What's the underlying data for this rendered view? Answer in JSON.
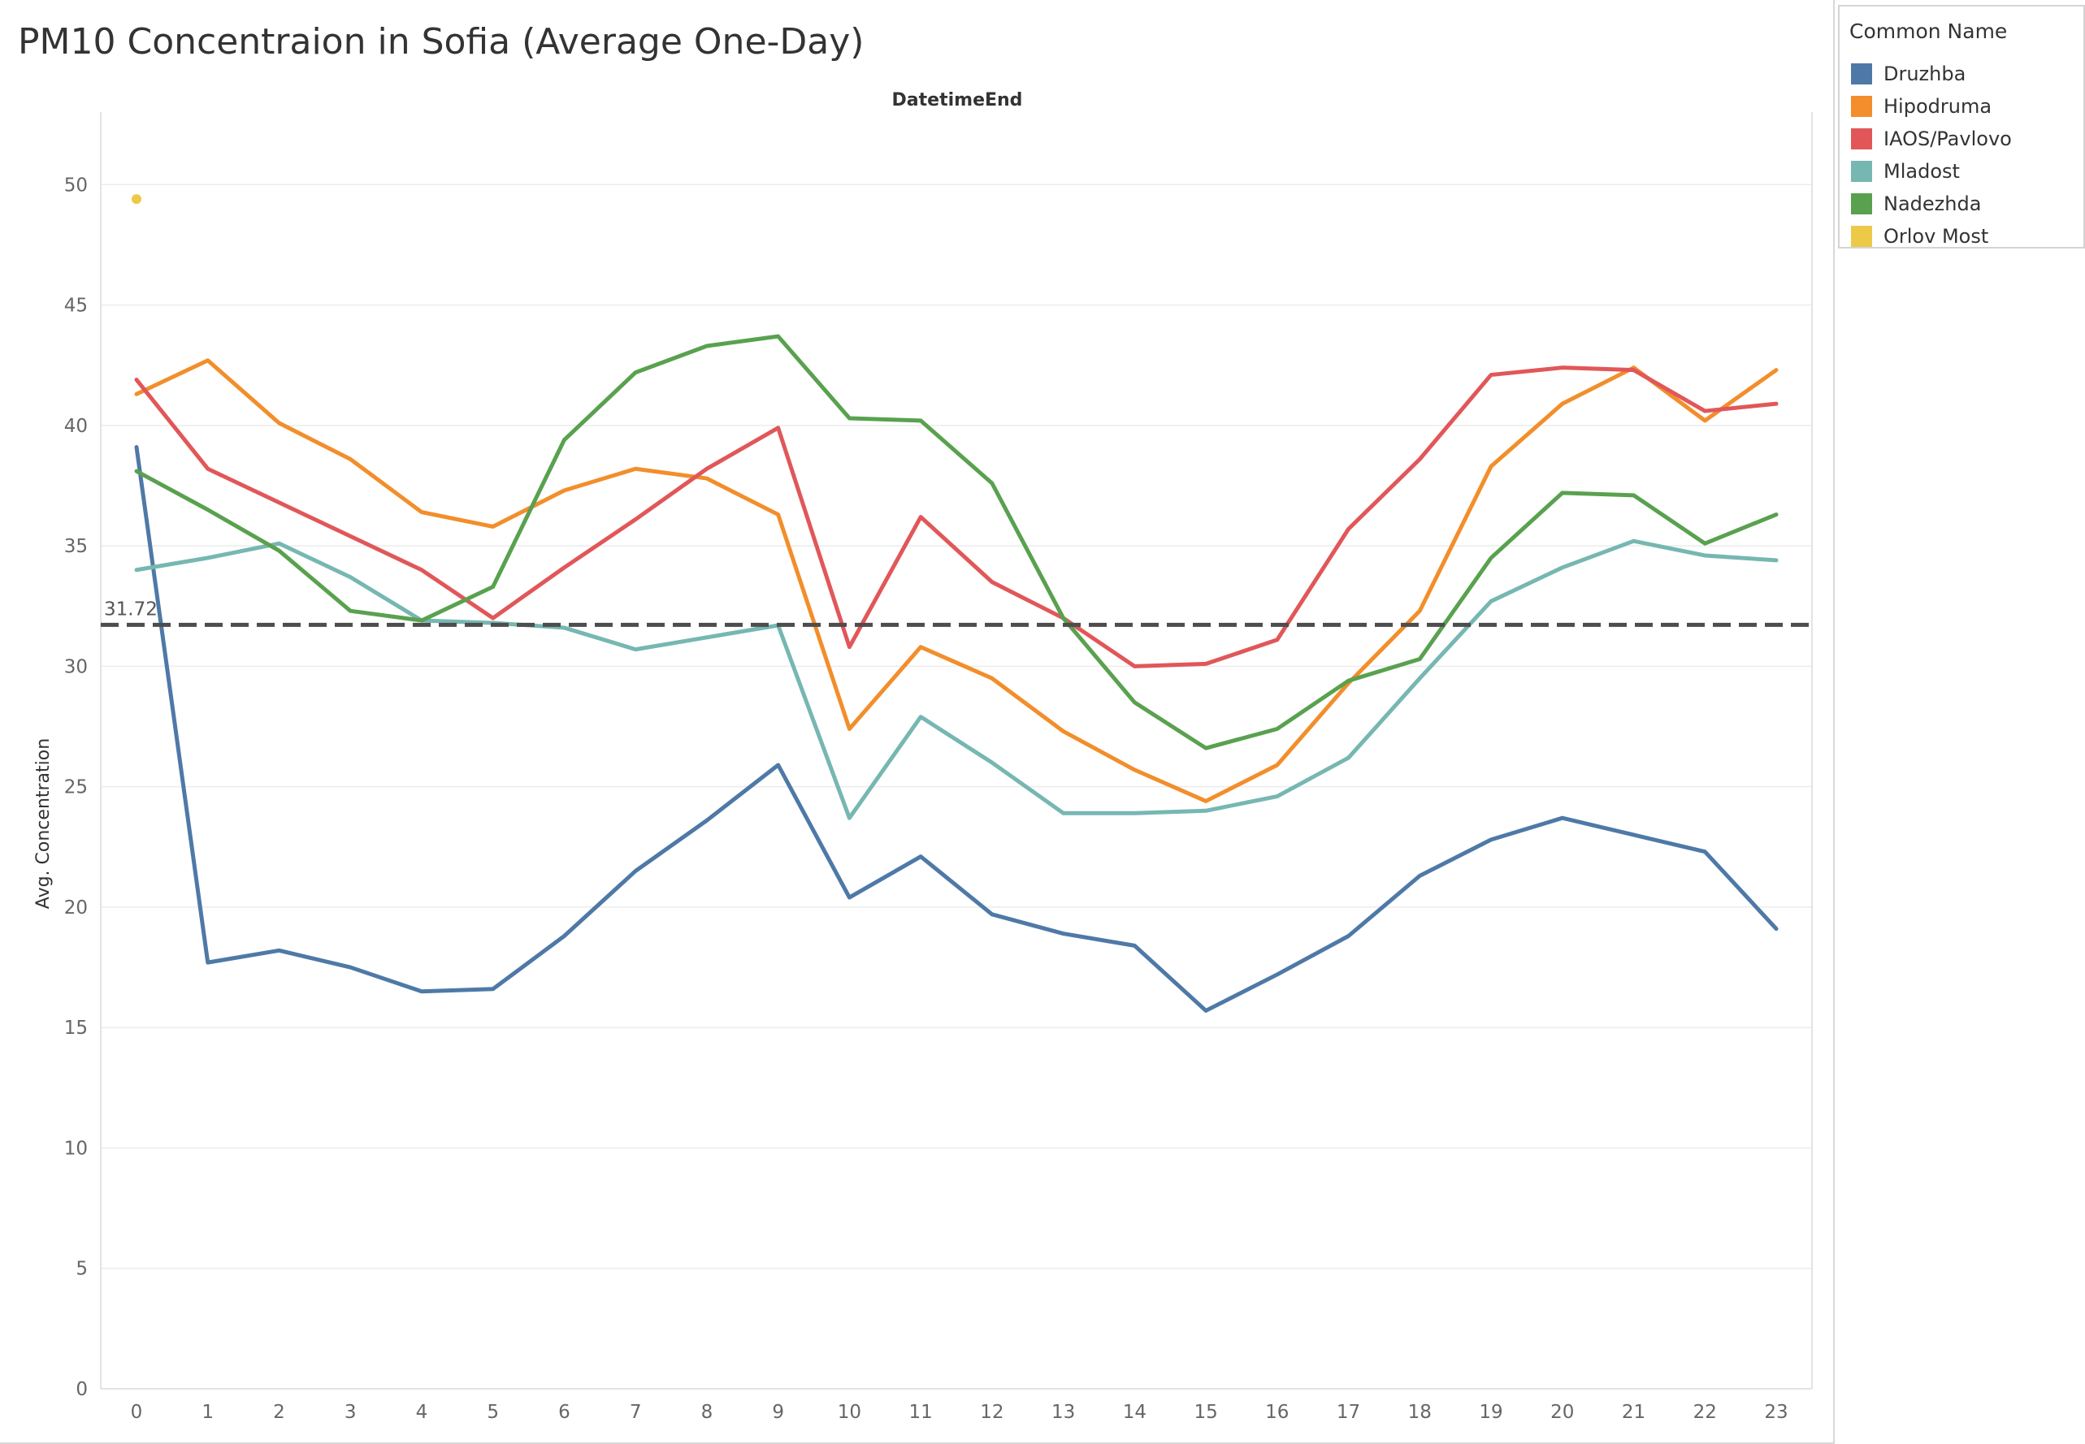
{
  "chart_data": {
    "type": "line",
    "title": "PM10 Concentraion in Sofia (Average One-Day)",
    "xlabel": "DatetimeEnd",
    "ylabel": "Avg. Concentration",
    "x": [
      0,
      1,
      2,
      3,
      4,
      5,
      6,
      7,
      8,
      9,
      10,
      11,
      12,
      13,
      14,
      15,
      16,
      17,
      18,
      19,
      20,
      21,
      22,
      23
    ],
    "ylim": [
      0,
      52
    ],
    "yticks": [
      0,
      5,
      10,
      15,
      20,
      25,
      30,
      35,
      40,
      45,
      50
    ],
    "grid": true,
    "legend_title": "Common Name",
    "legend_position": "right",
    "reference_line": {
      "value": 31.72,
      "label": "31.72"
    },
    "series": [
      {
        "name": "Druzhba",
        "color": "#4e79a7",
        "values": [
          39.1,
          17.7,
          18.2,
          17.5,
          16.5,
          16.6,
          18.8,
          21.5,
          23.6,
          25.9,
          20.4,
          22.1,
          19.7,
          18.9,
          18.4,
          15.7,
          17.2,
          18.8,
          21.3,
          22.8,
          23.7,
          23.0,
          22.3,
          19.1
        ]
      },
      {
        "name": "Hipodruma",
        "color": "#f28e2b",
        "values": [
          41.3,
          42.7,
          40.1,
          38.6,
          36.4,
          35.8,
          37.3,
          38.2,
          37.8,
          36.3,
          27.4,
          30.8,
          29.5,
          27.3,
          25.7,
          24.4,
          25.9,
          29.3,
          32.3,
          38.3,
          40.9,
          42.4,
          40.2,
          42.3
        ]
      },
      {
        "name": "IAOS/Pavlovo",
        "color": "#e15759",
        "values": [
          41.9,
          38.2,
          36.8,
          35.4,
          34.0,
          32.0,
          34.1,
          36.1,
          38.2,
          39.9,
          30.8,
          36.2,
          33.5,
          32.0,
          30.0,
          30.1,
          31.1,
          35.7,
          38.6,
          42.1,
          42.4,
          42.3,
          40.6,
          40.9
        ]
      },
      {
        "name": "Mladost",
        "color": "#76b7b2",
        "values": [
          34.0,
          34.5,
          35.1,
          33.7,
          31.9,
          31.8,
          31.6,
          30.7,
          31.2,
          31.7,
          23.7,
          27.9,
          26.0,
          23.9,
          23.9,
          24.0,
          24.6,
          26.2,
          29.5,
          32.7,
          34.1,
          35.2,
          34.6,
          34.4
        ]
      },
      {
        "name": "Nadezhda",
        "color": "#59a14f",
        "values": [
          38.1,
          36.5,
          34.8,
          32.3,
          31.9,
          33.3,
          39.4,
          42.2,
          43.3,
          43.7,
          40.3,
          40.2,
          37.6,
          32.0,
          28.5,
          26.6,
          27.4,
          29.4,
          30.3,
          34.5,
          37.2,
          37.1,
          35.1,
          36.3
        ]
      },
      {
        "name": "Orlov Most",
        "color": "#edc948",
        "values": [
          49.4,
          null,
          null,
          null,
          null,
          null,
          null,
          null,
          null,
          null,
          null,
          null,
          null,
          null,
          null,
          null,
          null,
          null,
          null,
          null,
          null,
          null,
          null,
          null
        ]
      }
    ]
  }
}
